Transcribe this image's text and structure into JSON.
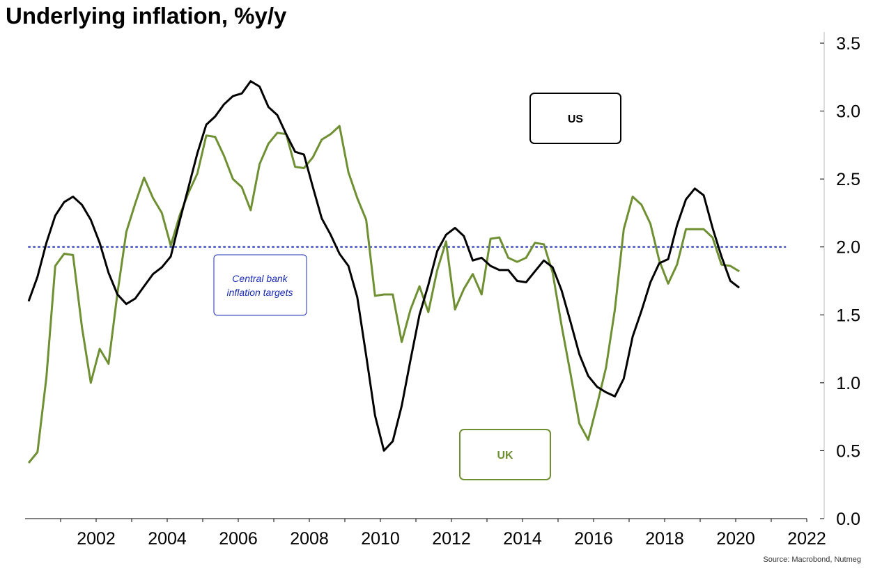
{
  "colors": {
    "us": "#000000",
    "uk": "#6e8f32",
    "target": "#1a2db0"
  },
  "chart_data": {
    "type": "line",
    "title": "Underlying inflation, %y/y",
    "source": "Source:  Macrobond, Nutmeg",
    "xlim": [
      2000,
      2022
    ],
    "ylim": [
      0,
      3.5
    ],
    "x_ticks": [
      2002,
      2004,
      2006,
      2008,
      2010,
      2012,
      2014,
      2016,
      2018,
      2020,
      2022
    ],
    "y_ticks": [
      "0.0",
      "0.5",
      "1.0",
      "1.5",
      "2.0",
      "2.5",
      "3.0",
      "3.5"
    ],
    "y_axis_side": "right",
    "grid": false,
    "reference_line": {
      "y": 2.0,
      "style": "dotted",
      "label": [
        "Central bank",
        "inflation targets"
      ]
    },
    "series": [
      {
        "name": "US",
        "x": [
          2000.1,
          2000.35,
          2000.6,
          2000.85,
          2001.1,
          2001.35,
          2001.6,
          2001.85,
          2002.1,
          2002.35,
          2002.6,
          2002.85,
          2003.1,
          2003.35,
          2003.6,
          2003.85,
          2004.1,
          2004.35,
          2004.6,
          2004.85,
          2005.1,
          2005.35,
          2005.6,
          2005.85,
          2006.1,
          2006.35,
          2006.6,
          2006.85,
          2007.1,
          2007.35,
          2007.6,
          2007.85,
          2008.1,
          2008.35,
          2008.6,
          2008.85,
          2009.1,
          2009.35,
          2009.6,
          2009.85,
          2010.1,
          2010.35,
          2010.6,
          2010.85,
          2011.1,
          2011.35,
          2011.6,
          2011.85,
          2012.1,
          2012.35,
          2012.6,
          2012.85,
          2013.1,
          2013.35,
          2013.6,
          2013.85,
          2014.1,
          2014.35,
          2014.6,
          2014.85,
          2015.1,
          2015.35,
          2015.6,
          2015.85,
          2016.1,
          2016.35,
          2016.6,
          2016.85,
          2017.1,
          2017.35,
          2017.6,
          2017.85,
          2018.1,
          2018.35,
          2018.6,
          2018.85,
          2019.1,
          2019.35,
          2019.6,
          2019.85,
          2020.1
        ],
        "values": [
          1.6,
          1.78,
          2.03,
          2.23,
          2.33,
          2.37,
          2.31,
          2.2,
          2.03,
          1.81,
          1.65,
          1.58,
          1.62,
          1.71,
          1.8,
          1.85,
          1.93,
          2.19,
          2.44,
          2.69,
          2.9,
          2.96,
          3.05,
          3.11,
          3.13,
          3.22,
          3.18,
          3.03,
          2.97,
          2.83,
          2.7,
          2.68,
          2.44,
          2.21,
          2.09,
          1.95,
          1.86,
          1.63,
          1.2,
          0.76,
          0.5,
          0.57,
          0.83,
          1.17,
          1.5,
          1.72,
          1.97,
          2.09,
          2.14,
          2.08,
          1.9,
          1.92,
          1.86,
          1.83,
          1.83,
          1.75,
          1.74,
          1.82,
          1.9,
          1.85,
          1.68,
          1.45,
          1.21,
          1.05,
          0.97,
          0.93,
          0.9,
          1.03,
          1.34,
          1.53,
          1.74,
          1.88,
          1.91,
          2.16,
          2.35,
          2.43,
          2.38,
          2.14,
          1.93,
          1.75,
          1.7
        ]
      },
      {
        "name": "UK",
        "x": [
          2000.1,
          2000.35,
          2000.6,
          2000.85,
          2001.1,
          2001.35,
          2001.6,
          2001.85,
          2002.1,
          2002.35,
          2002.6,
          2002.85,
          2003.1,
          2003.35,
          2003.6,
          2003.85,
          2004.1,
          2004.35,
          2004.6,
          2004.85,
          2005.1,
          2005.35,
          2005.6,
          2005.85,
          2006.1,
          2006.35,
          2006.6,
          2006.85,
          2007.1,
          2007.35,
          2007.6,
          2007.85,
          2008.1,
          2008.35,
          2008.6,
          2008.85,
          2009.1,
          2009.35,
          2009.6,
          2009.85,
          2010.1,
          2010.35,
          2010.6,
          2010.85,
          2011.1,
          2011.35,
          2011.6,
          2011.85,
          2012.1,
          2012.35,
          2012.6,
          2012.85,
          2013.1,
          2013.35,
          2013.6,
          2013.85,
          2014.1,
          2014.35,
          2014.6,
          2014.85,
          2015.1,
          2015.35,
          2015.6,
          2015.85,
          2016.1,
          2016.35,
          2016.6,
          2016.85,
          2017.1,
          2017.35,
          2017.6,
          2017.85,
          2018.1,
          2018.35,
          2018.6,
          2018.85,
          2019.1,
          2019.35,
          2019.6,
          2019.85,
          2020.1
        ],
        "values": [
          0.41,
          0.49,
          1.04,
          1.86,
          1.95,
          1.94,
          1.41,
          1.0,
          1.25,
          1.14,
          1.66,
          2.11,
          2.32,
          2.51,
          2.36,
          2.25,
          2.01,
          2.23,
          2.4,
          2.54,
          2.82,
          2.81,
          2.67,
          2.5,
          2.44,
          2.27,
          2.61,
          2.76,
          2.84,
          2.83,
          2.59,
          2.58,
          2.66,
          2.79,
          2.83,
          2.89,
          2.55,
          2.36,
          2.2,
          1.64,
          1.65,
          1.65,
          1.3,
          1.54,
          1.71,
          1.52,
          1.83,
          2.04,
          1.54,
          1.69,
          1.8,
          1.65,
          2.06,
          2.07,
          1.92,
          1.89,
          1.92,
          2.03,
          2.02,
          1.81,
          1.42,
          1.07,
          0.7,
          0.58,
          0.84,
          1.11,
          1.54,
          2.13,
          2.37,
          2.31,
          2.17,
          1.9,
          1.73,
          1.87,
          2.13,
          2.13,
          2.13,
          2.07,
          1.87,
          1.86,
          1.82
        ]
      }
    ],
    "legend_boxes": [
      {
        "label": "US",
        "placement": "upper-right"
      },
      {
        "label": "UK",
        "placement": "lower-middle"
      }
    ]
  }
}
